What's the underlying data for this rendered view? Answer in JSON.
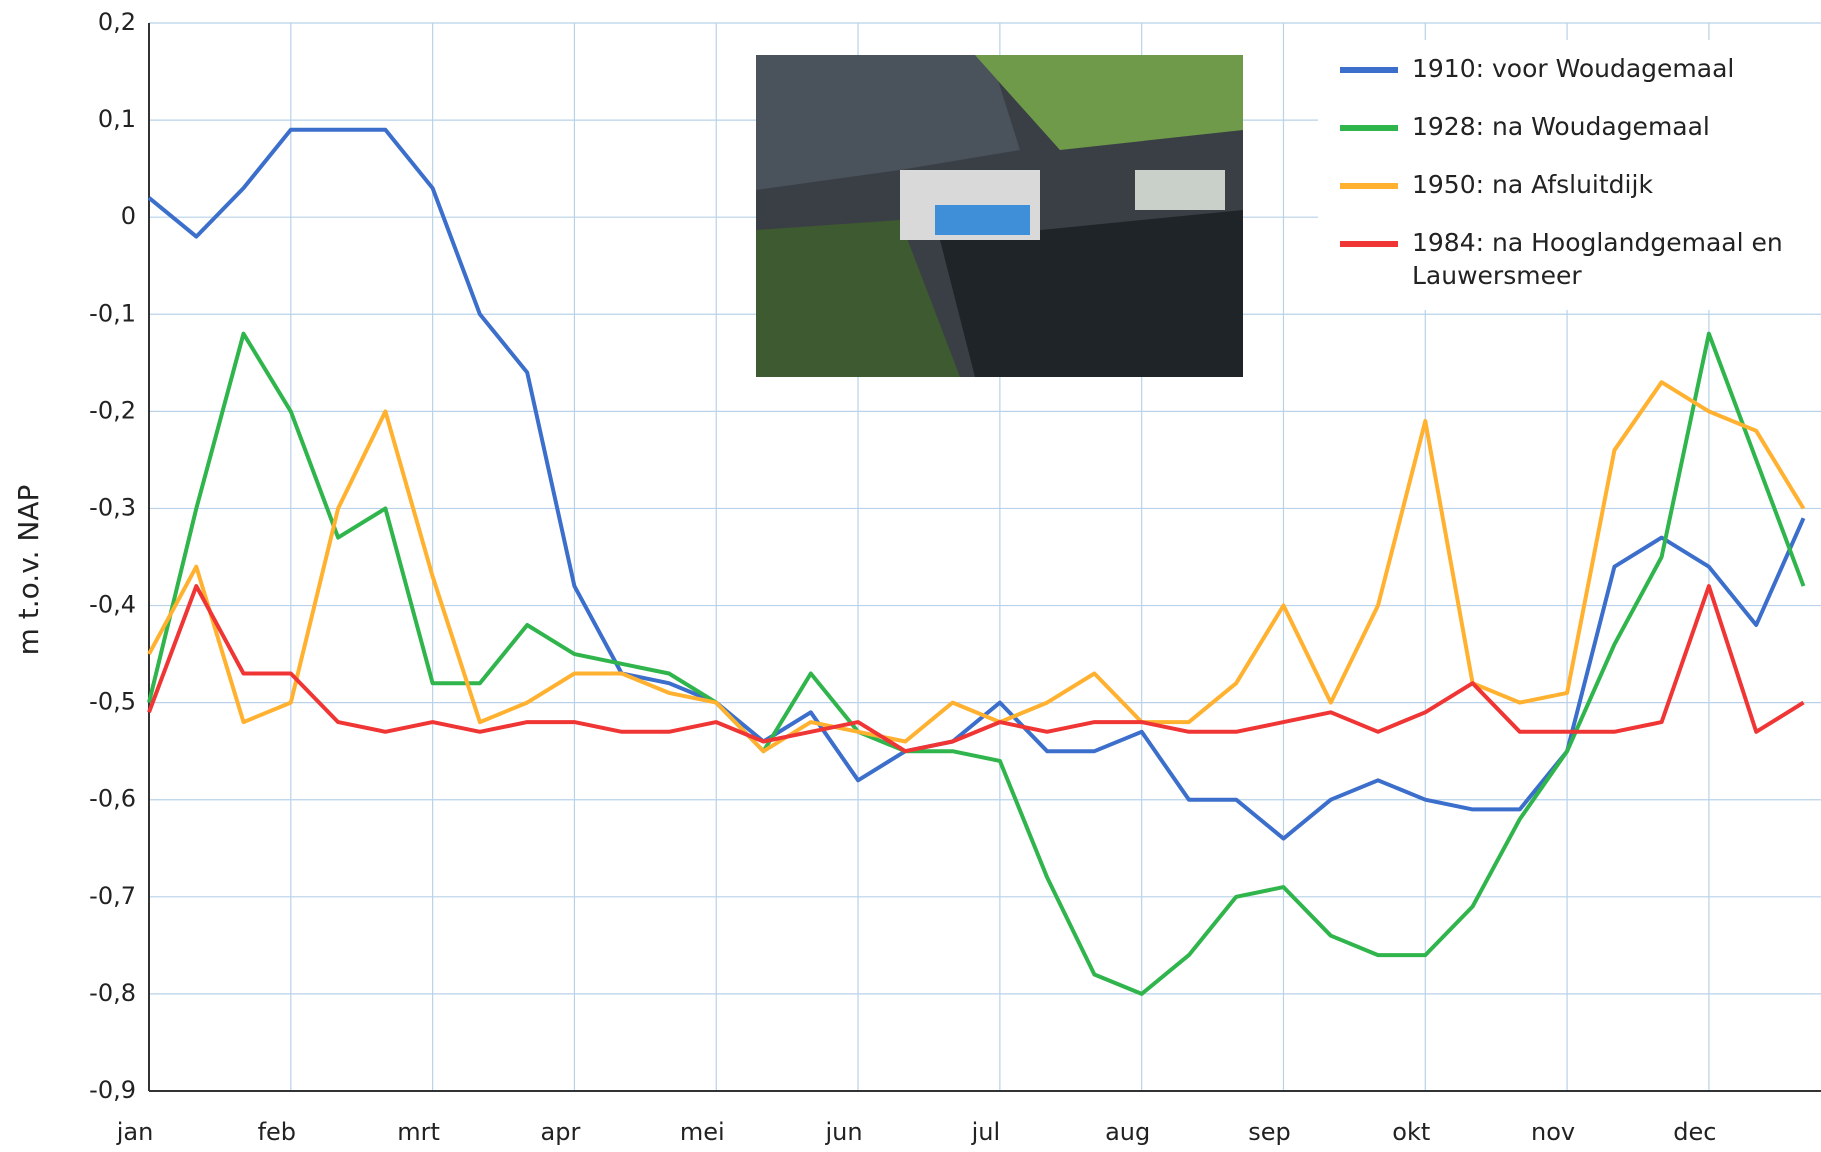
{
  "chart_data": {
    "type": "line",
    "y_label": "m t.o.v. NAP",
    "categories": [
      "jan",
      null,
      null,
      "feb",
      null,
      null,
      "mrt",
      null,
      null,
      "apr",
      null,
      null,
      "mei",
      null,
      null,
      "jun",
      null,
      null,
      "jul",
      null,
      null,
      "aug",
      null,
      null,
      "sep",
      null,
      null,
      "okt",
      null,
      null,
      "nov",
      null,
      null,
      "dec",
      null,
      null
    ],
    "ylim": [
      -0.9,
      0.2
    ],
    "yticks": [
      {
        "value": -0.9,
        "label": "-0,9"
      },
      {
        "value": -0.8,
        "label": "-0,8"
      },
      {
        "value": -0.7,
        "label": "-0,7"
      },
      {
        "value": -0.6,
        "label": "-0,6"
      },
      {
        "value": -0.5,
        "label": "-0,5"
      },
      {
        "value": -0.4,
        "label": "-0,4"
      },
      {
        "value": -0.3,
        "label": "-0,3"
      },
      {
        "value": -0.2,
        "label": "-0,2"
      },
      {
        "value": -0.1,
        "label": "-0,1"
      },
      0,
      {
        "value": 0.1,
        "label": "0,1"
      },
      {
        "value": 0.2,
        "label": "0,2"
      }
    ],
    "grid": true,
    "legend": "top-right",
    "series": [
      {
        "name": "1910: voor Woudagemaal",
        "color": "#3b6fcb",
        "values": [
          0.02,
          -0.02,
          0.03,
          0.09,
          0.09,
          0.09,
          0.03,
          -0.1,
          -0.16,
          -0.38,
          -0.47,
          -0.48,
          -0.5,
          -0.54,
          -0.51,
          -0.58,
          -0.55,
          -0.54,
          -0.5,
          -0.55,
          -0.55,
          -0.53,
          -0.6,
          -0.6,
          -0.64,
          -0.6,
          -0.58,
          -0.6,
          -0.61,
          -0.61,
          -0.55,
          -0.36,
          -0.33,
          -0.36,
          -0.42,
          -0.31
        ]
      },
      {
        "name": "1928: na Woudagemaal",
        "color": "#2fb54b",
        "values": [
          -0.5,
          -0.3,
          -0.12,
          -0.2,
          -0.33,
          -0.3,
          -0.48,
          -0.48,
          -0.42,
          -0.45,
          -0.46,
          -0.47,
          -0.5,
          -0.55,
          -0.47,
          -0.53,
          -0.55,
          -0.55,
          -0.56,
          -0.68,
          -0.78,
          -0.8,
          -0.76,
          -0.7,
          -0.69,
          -0.74,
          -0.76,
          -0.76,
          -0.71,
          -0.62,
          -0.55,
          -0.44,
          -0.35,
          -0.12,
          -0.25,
          -0.38
        ]
      },
      {
        "name": "1950: na Afsluitdijk",
        "color": "#ffb12f",
        "values": [
          -0.45,
          -0.36,
          -0.52,
          -0.5,
          -0.3,
          -0.2,
          -0.37,
          -0.52,
          -0.5,
          -0.47,
          -0.47,
          -0.49,
          -0.5,
          -0.55,
          -0.52,
          -0.53,
          -0.54,
          -0.5,
          -0.52,
          -0.5,
          -0.47,
          -0.52,
          -0.52,
          -0.48,
          -0.4,
          -0.5,
          -0.4,
          -0.21,
          -0.48,
          -0.5,
          -0.49,
          -0.24,
          -0.17,
          -0.2,
          -0.22,
          -0.3
        ]
      },
      {
        "name": "1984: na Hooglandgemaal en Lauwersmeer",
        "color": "#f03535",
        "values": [
          -0.51,
          -0.38,
          -0.47,
          -0.47,
          -0.52,
          -0.53,
          -0.52,
          -0.53,
          -0.52,
          -0.52,
          -0.53,
          -0.53,
          -0.52,
          -0.54,
          -0.53,
          -0.52,
          -0.55,
          -0.54,
          -0.52,
          -0.53,
          -0.52,
          -0.52,
          -0.53,
          -0.53,
          -0.52,
          -0.51,
          -0.53,
          -0.51,
          -0.48,
          -0.53,
          -0.53,
          -0.53,
          -0.52,
          -0.38,
          -0.53,
          -0.5
        ]
      }
    ]
  }
}
